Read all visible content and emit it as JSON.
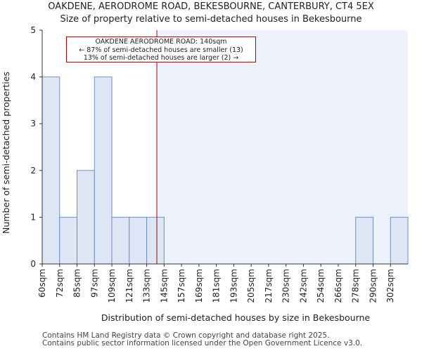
{
  "title": "OAKDENE, AERODROME ROAD, BEKESBOURNE, CANTERBURY, CT4 5EX",
  "subtitle": "Size of property relative to semi-detached houses in Bekesbourne",
  "annotation": {
    "line1": "OAKDENE AERODROME ROAD: 140sqm",
    "line2": "← 87% of semi-detached houses are smaller (13)",
    "line3": "13% of semi-detached houses are larger (2) →"
  },
  "footer": {
    "line1": "Contains HM Land Registry data © Crown copyright and database right 2025.",
    "line2": "Contains public sector information licensed under the Open Government Licence v3.0."
  },
  "colors": {
    "bar_fill": "#dce6f4",
    "bar_stroke": "#6e8fc7",
    "highlight_bg": "#eef2fb",
    "marker": "#aa0000"
  },
  "chart_data": {
    "type": "bar",
    "title": "OAKDENE, AERODROME ROAD, BEKESBOURNE, CANTERBURY, CT4 5EX",
    "subtitle": "Size of property relative to semi-detached houses in Bekesbourne",
    "xlabel": "Distribution of semi-detached houses by size in Bekesbourne",
    "ylabel": "Number of semi-detached properties",
    "categories": [
      "60sqm",
      "72sqm",
      "85sqm",
      "97sqm",
      "109sqm",
      "121sqm",
      "133sqm",
      "145sqm",
      "157sqm",
      "169sqm",
      "181sqm",
      "193sqm",
      "205sqm",
      "217sqm",
      "230sqm",
      "242sqm",
      "254sqm",
      "266sqm",
      "278sqm",
      "290sqm",
      "302sqm"
    ],
    "values": [
      4,
      1,
      2,
      4,
      1,
      1,
      1,
      0,
      0,
      0,
      0,
      0,
      0,
      0,
      0,
      0,
      0,
      0,
      1,
      0,
      1
    ],
    "ylim": [
      0,
      5
    ],
    "yticks": [
      0,
      1,
      2,
      3,
      4,
      5
    ],
    "property_marker": {
      "value_sqm": 140,
      "label": "OAKDENE AERODROME ROAD: 140sqm"
    },
    "grid": false
  }
}
